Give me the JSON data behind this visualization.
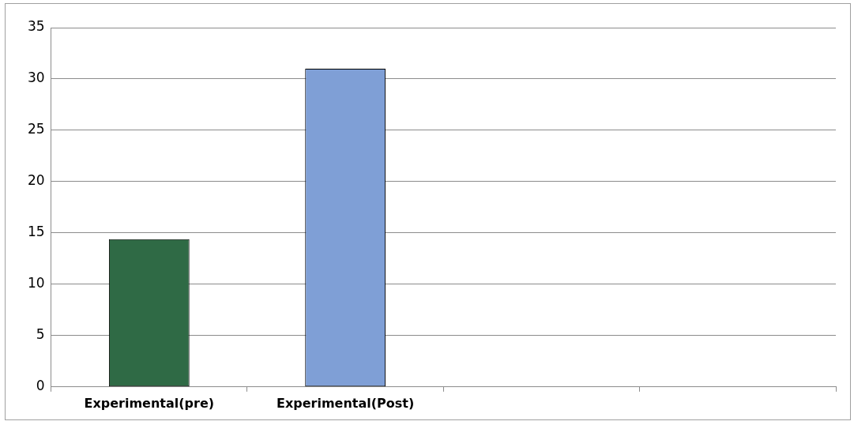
{
  "chart_data": {
    "type": "bar",
    "categories": [
      "Experimental(pre)",
      "Experimental(Post)",
      null,
      null
    ],
    "values": [
      14.4,
      31,
      null,
      null
    ],
    "colors": [
      "#2f6a45",
      "#7f9fd6",
      null,
      null
    ],
    "ylim": [
      0,
      35
    ],
    "yticks": [
      0,
      5,
      10,
      15,
      20,
      25,
      30,
      35
    ],
    "grid": "y",
    "legend": false
  }
}
